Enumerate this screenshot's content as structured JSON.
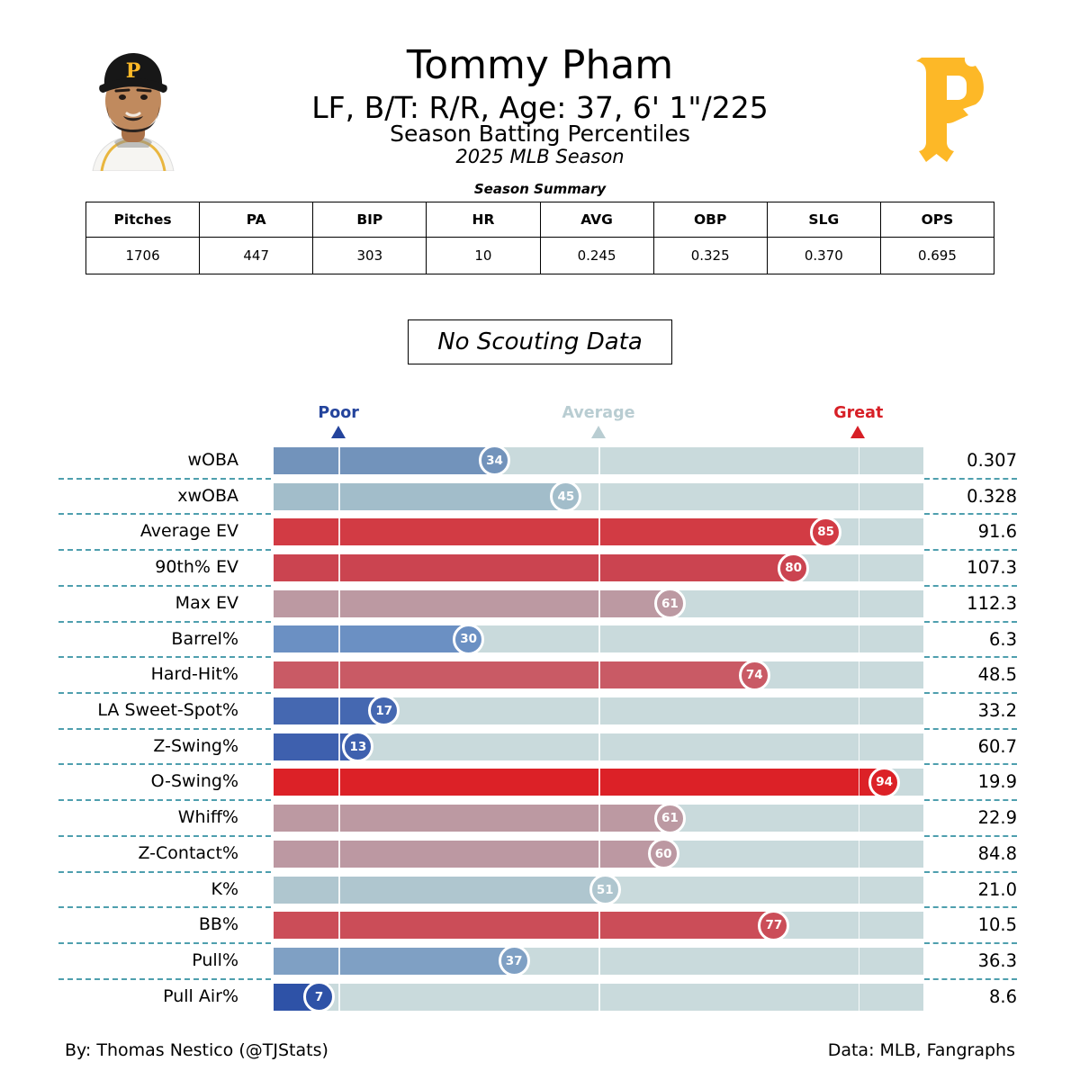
{
  "header": {
    "title": "Tommy Pham",
    "subtitle": "LF, B/T: R/R, Age: 37, 6' 1\"/225",
    "subtitle2": "Season Batting Percentiles",
    "subtitle3": "2025 MLB Season",
    "team": "Pittsburgh Pirates",
    "logo_color": "#FDB827"
  },
  "season_summary": {
    "title": "Season Summary",
    "columns": [
      "Pitches",
      "PA",
      "BIP",
      "HR",
      "AVG",
      "OBP",
      "SLG",
      "OPS"
    ],
    "values": [
      "1706",
      "447",
      "303",
      "10",
      "0.245",
      "0.325",
      "0.370",
      "0.695"
    ]
  },
  "scouting_banner": "No Scouting Data",
  "chart_data": {
    "type": "bar",
    "orientation": "horizontal",
    "title": "Season Batting Percentiles",
    "axis": {
      "min": 0,
      "max": 100,
      "gridlines_percentile": [
        10,
        50,
        90
      ],
      "track_color": "#C9DADC",
      "separator_color": "#4F9FAE"
    },
    "legend": [
      {
        "label": "Poor",
        "color": "#24449C",
        "position_percentile": 10
      },
      {
        "label": "Average",
        "color": "#B9CDD2",
        "position_percentile": 50
      },
      {
        "label": "Great",
        "color": "#D71F26",
        "position_percentile": 90
      }
    ],
    "rows": [
      {
        "label": "wOBA",
        "percentile": 34,
        "value": "0.307",
        "color": "#7293BB"
      },
      {
        "label": "xwOBA",
        "percentile": 45,
        "value": "0.328",
        "color": "#A2BDCA"
      },
      {
        "label": "Average EV",
        "percentile": 85,
        "value": "91.6",
        "color": "#D23B44"
      },
      {
        "label": "90th% EV",
        "percentile": 80,
        "value": "107.3",
        "color": "#CB4450"
      },
      {
        "label": "Max EV",
        "percentile": 61,
        "value": "112.3",
        "color": "#BC99A2"
      },
      {
        "label": "Barrel%",
        "percentile": 30,
        "value": "6.3",
        "color": "#6B90C3"
      },
      {
        "label": "Hard-Hit%",
        "percentile": 74,
        "value": "48.5",
        "color": "#C95A65"
      },
      {
        "label": "LA Sweet-Spot%",
        "percentile": 17,
        "value": "33.2",
        "color": "#4568B1"
      },
      {
        "label": "Z-Swing%",
        "percentile": 13,
        "value": "60.7",
        "color": "#3E60AE"
      },
      {
        "label": "O-Swing%",
        "percentile": 94,
        "value": "19.9",
        "color": "#DC2127"
      },
      {
        "label": "Whiff%",
        "percentile": 61,
        "value": "22.9",
        "color": "#BC99A2"
      },
      {
        "label": "Z-Contact%",
        "percentile": 60,
        "value": "84.8",
        "color": "#BC98A2"
      },
      {
        "label": "K%",
        "percentile": 51,
        "value": "21.0",
        "color": "#AFC6CF"
      },
      {
        "label": "BB%",
        "percentile": 77,
        "value": "10.5",
        "color": "#CB4D58"
      },
      {
        "label": "Pull%",
        "percentile": 37,
        "value": "36.3",
        "color": "#7FA0C4"
      },
      {
        "label": "Pull Air%",
        "percentile": 7,
        "value": "8.6",
        "color": "#2E52A7"
      }
    ]
  },
  "footer": {
    "left": "By: Thomas Nestico (@TJStats)",
    "right": "Data: MLB, Fangraphs"
  }
}
